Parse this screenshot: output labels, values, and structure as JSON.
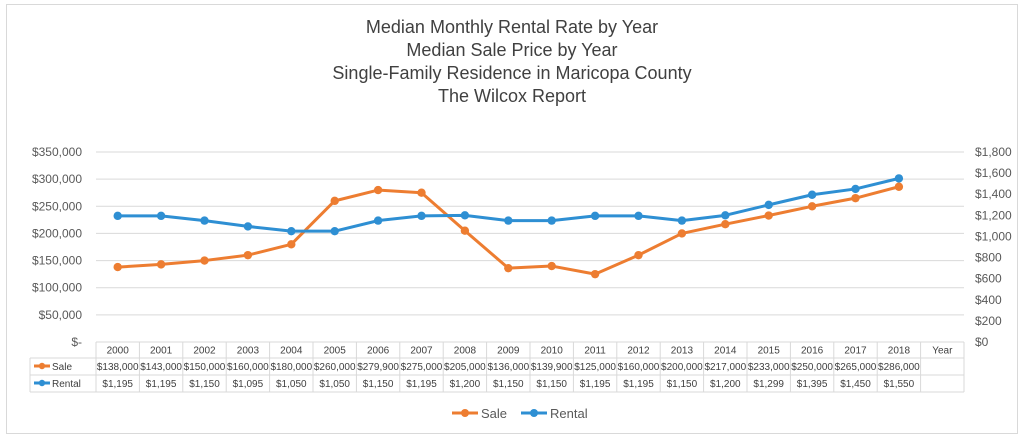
{
  "chart_data": {
    "type": "line",
    "title_lines": [
      "Median Monthly Rental Rate by Year",
      "Median Sale Price by Year",
      "Single-Family Residence in Maricopa County",
      "The Wilcox Report"
    ],
    "categories": [
      "2000",
      "2001",
      "2002",
      "2003",
      "2004",
      "2005",
      "2006",
      "2007",
      "2008",
      "2009",
      "2010",
      "2011",
      "2012",
      "2013",
      "2014",
      "2015",
      "2016",
      "2017",
      "2018"
    ],
    "extra_column_header": "Year",
    "series": [
      {
        "name": "Sale",
        "axis": "left",
        "color": "#ed7d31",
        "values": [
          138000,
          143000,
          150000,
          160000,
          180000,
          260000,
          279900,
          275000,
          205000,
          136000,
          139900,
          125000,
          160000,
          200000,
          217000,
          233000,
          250000,
          265000,
          286000
        ],
        "labels": [
          "$138,000",
          "$143,000",
          "$150,000",
          "$160,000",
          "$180,000",
          "$260,000",
          "$279,900",
          "$275,000",
          "$205,000",
          "$136,000",
          "$139,900",
          "$125,000",
          "$160,000",
          "$200,000",
          "$217,000",
          "$233,000",
          "$250,000",
          "$265,000",
          "$286,000"
        ]
      },
      {
        "name": "Rental",
        "axis": "right",
        "color": "#2e8fd3",
        "values": [
          1195,
          1195,
          1150,
          1095,
          1050,
          1050,
          1150,
          1195,
          1200,
          1150,
          1150,
          1195,
          1195,
          1150,
          1200,
          1299,
          1395,
          1450,
          1550
        ],
        "labels": [
          "$1,195",
          "$1,195",
          "$1,150",
          "$1,095",
          "$1,050",
          "$1,050",
          "$1,150",
          "$1,195",
          "$1,200",
          "$1,150",
          "$1,150",
          "$1,195",
          "$1,195",
          "$1,150",
          "$1,200",
          "$1,299",
          "$1,395",
          "$1,450",
          "$1,550"
        ]
      }
    ],
    "left_axis": {
      "range": [
        0,
        350000
      ],
      "ticks": [
        0,
        50000,
        100000,
        150000,
        200000,
        250000,
        300000,
        350000
      ],
      "tick_labels": [
        "$-",
        "$50,000",
        "$100,000",
        "$150,000",
        "$200,000",
        "$250,000",
        "$300,000",
        "$350,000"
      ]
    },
    "right_axis": {
      "range": [
        0,
        1800
      ],
      "ticks": [
        0,
        200,
        400,
        600,
        800,
        1000,
        1200,
        1400,
        1600,
        1800
      ],
      "tick_labels": [
        "$0",
        "$200",
        "$400",
        "$600",
        "$800",
        "$1,000",
        "$1,200",
        "$1,400",
        "$1,600",
        "$1,800"
      ]
    },
    "grid": true,
    "legend": {
      "placement": "bottom",
      "entries": [
        "Sale",
        "Rental"
      ]
    },
    "data_table": true
  }
}
